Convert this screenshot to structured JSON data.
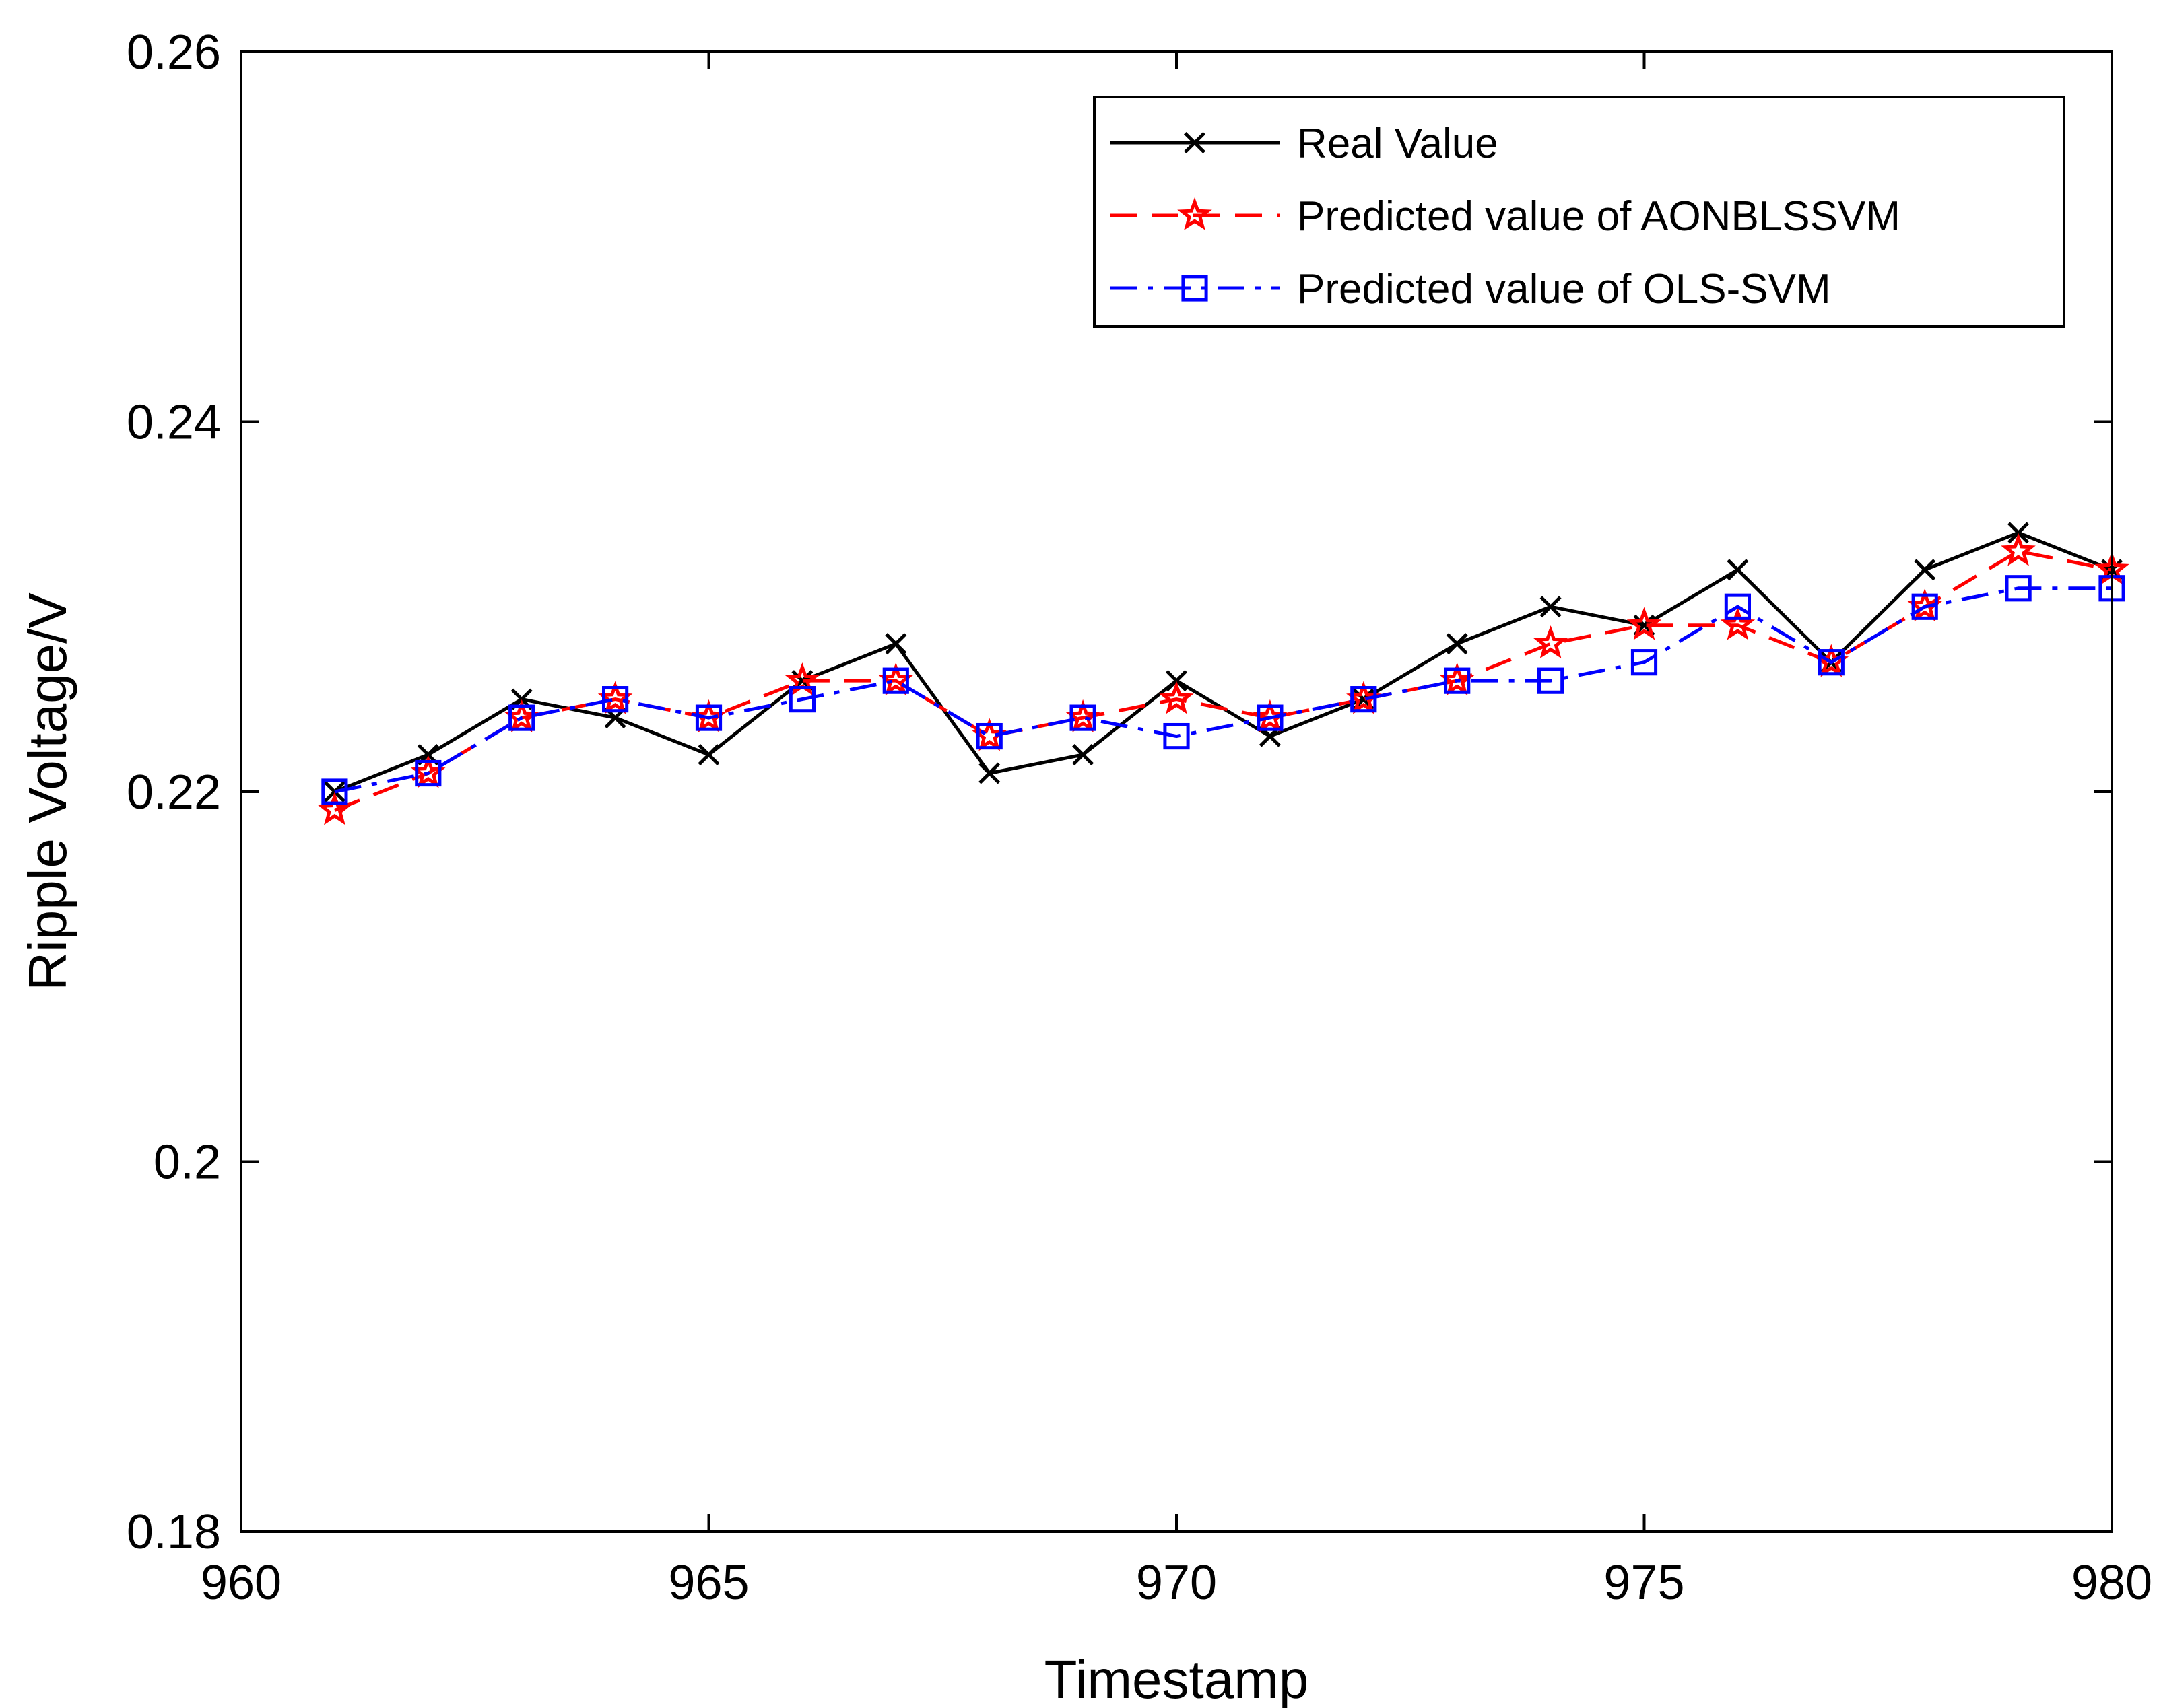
{
  "chart_data": {
    "type": "line",
    "xlabel": "Timestamp",
    "ylabel": "Ripple Voltage/V",
    "xlim": [
      960,
      980
    ],
    "ylim": [
      0.18,
      0.26
    ],
    "xticks": [
      960,
      965,
      970,
      975,
      980
    ],
    "yticks": [
      0.18,
      0.2,
      0.22,
      0.24,
      0.26
    ],
    "xtick_labels": [
      "960",
      "965",
      "970",
      "975",
      "980"
    ],
    "ytick_labels": [
      "0.18",
      "0.2",
      "0.22",
      "0.24",
      "0.26"
    ],
    "legend_position": "top-right",
    "x": [
      961,
      962,
      963,
      964,
      965,
      966,
      967,
      968,
      969,
      970,
      971,
      972,
      973,
      974,
      975,
      976,
      977,
      978,
      979,
      980
    ],
    "series": [
      {
        "name": "Real Value",
        "color": "#000000",
        "line_style": "solid",
        "marker": "x",
        "values": [
          0.22,
          0.222,
          0.225,
          0.224,
          0.222,
          0.226,
          0.228,
          0.221,
          0.222,
          0.226,
          0.223,
          0.225,
          0.228,
          0.23,
          0.229,
          0.232,
          0.227,
          0.232,
          0.234,
          0.232
        ]
      },
      {
        "name": "Predicted value of AONBLSSVM",
        "color": "#ff0000",
        "line_style": "dashed",
        "marker": "star",
        "values": [
          0.219,
          0.221,
          0.224,
          0.225,
          0.224,
          0.226,
          0.226,
          0.223,
          0.224,
          0.225,
          0.224,
          0.225,
          0.226,
          0.228,
          0.229,
          0.229,
          0.227,
          0.23,
          0.233,
          0.232
        ]
      },
      {
        "name": "Predicted value of OLS-SVM",
        "color": "#0000ff",
        "line_style": "dashdot",
        "marker": "square",
        "values": [
          0.22,
          0.221,
          0.224,
          0.225,
          0.224,
          0.225,
          0.226,
          0.223,
          0.224,
          0.223,
          0.224,
          0.225,
          0.226,
          0.226,
          0.227,
          0.23,
          0.227,
          0.23,
          0.231,
          0.231
        ]
      }
    ]
  }
}
